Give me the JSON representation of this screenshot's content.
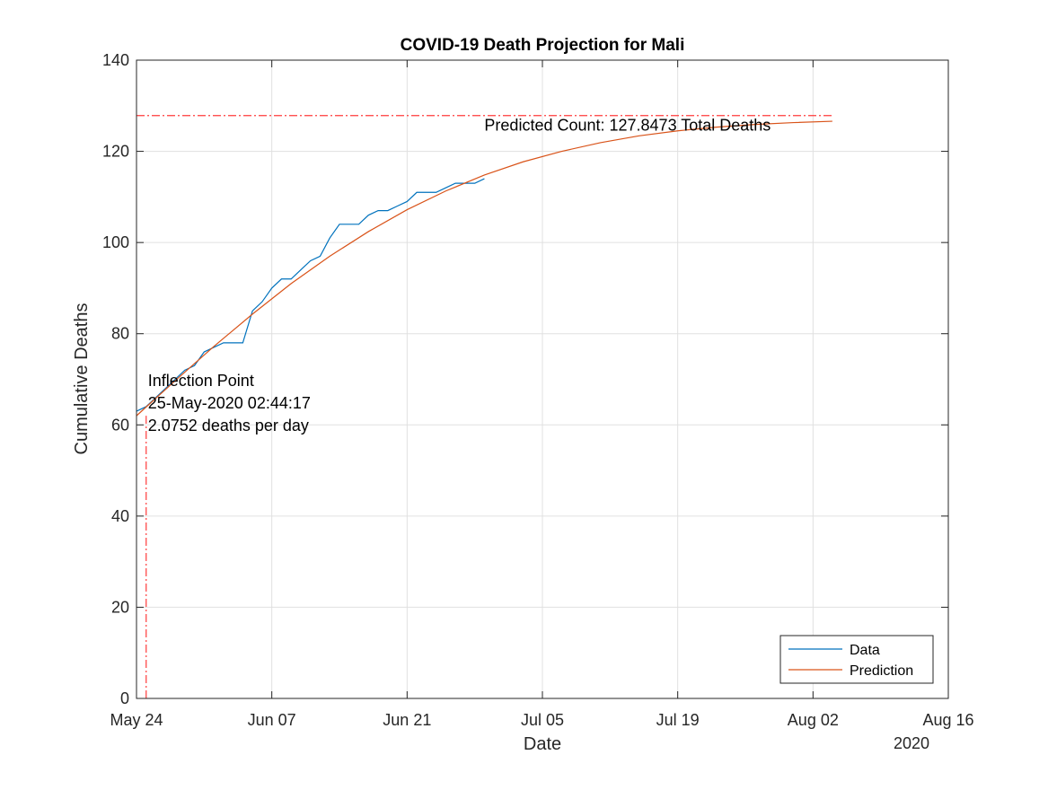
{
  "chart_data": {
    "type": "line",
    "title": "COVID-19 Death Projection for Mali",
    "xlabel": "Date",
    "ylabel": "Cumulative Deaths",
    "x_axis_type": "date",
    "xlim": [
      "2020-05-24",
      "2020-08-16"
    ],
    "ylim": [
      0,
      140
    ],
    "x_ticks": [
      {
        "date": "2020-05-24",
        "label": "May 24"
      },
      {
        "date": "2020-06-07",
        "label": "Jun 07"
      },
      {
        "date": "2020-06-21",
        "label": "Jun 21"
      },
      {
        "date": "2020-07-05",
        "label": "Jul 05"
      },
      {
        "date": "2020-07-19",
        "label": "Jul 19"
      },
      {
        "date": "2020-08-02",
        "label": "Aug 02"
      },
      {
        "date": "2020-08-16",
        "label": "Aug 16"
      }
    ],
    "x_year_label": "2020",
    "y_ticks": [
      0,
      20,
      40,
      60,
      80,
      100,
      120,
      140
    ],
    "grid": true,
    "legend_position": "bottom-right",
    "series": [
      {
        "name": "Data",
        "color": "#0072BD",
        "points": [
          [
            "2020-05-24",
            63
          ],
          [
            "2020-05-25",
            64
          ],
          [
            "2020-05-26",
            66
          ],
          [
            "2020-05-27",
            68
          ],
          [
            "2020-05-28",
            70
          ],
          [
            "2020-05-29",
            72
          ],
          [
            "2020-05-30",
            73
          ],
          [
            "2020-05-31",
            76
          ],
          [
            "2020-06-01",
            77
          ],
          [
            "2020-06-02",
            78
          ],
          [
            "2020-06-03",
            78
          ],
          [
            "2020-06-04",
            78
          ],
          [
            "2020-06-05",
            85
          ],
          [
            "2020-06-06",
            87
          ],
          [
            "2020-06-07",
            90
          ],
          [
            "2020-06-08",
            92
          ],
          [
            "2020-06-09",
            92
          ],
          [
            "2020-06-10",
            94
          ],
          [
            "2020-06-11",
            96
          ],
          [
            "2020-06-12",
            97
          ],
          [
            "2020-06-13",
            101
          ],
          [
            "2020-06-14",
            104
          ],
          [
            "2020-06-15",
            104
          ],
          [
            "2020-06-16",
            104
          ],
          [
            "2020-06-17",
            106
          ],
          [
            "2020-06-18",
            107
          ],
          [
            "2020-06-19",
            107
          ],
          [
            "2020-06-20",
            108
          ],
          [
            "2020-06-21",
            109
          ],
          [
            "2020-06-22",
            111
          ],
          [
            "2020-06-23",
            111
          ],
          [
            "2020-06-24",
            111
          ],
          [
            "2020-06-25",
            112
          ],
          [
            "2020-06-26",
            113
          ],
          [
            "2020-06-27",
            113
          ],
          [
            "2020-06-28",
            113
          ],
          [
            "2020-06-29",
            114
          ]
        ]
      },
      {
        "name": "Prediction",
        "color": "#D95319",
        "points": [
          [
            "2020-05-24",
            62.0
          ],
          [
            "2020-05-28",
            69.7
          ],
          [
            "2020-06-01",
            77.2
          ],
          [
            "2020-06-05",
            84.3
          ],
          [
            "2020-06-09",
            91.0
          ],
          [
            "2020-06-13",
            97.0
          ],
          [
            "2020-06-17",
            102.4
          ],
          [
            "2020-06-21",
            107.2
          ],
          [
            "2020-06-25",
            111.3
          ],
          [
            "2020-06-29",
            114.8
          ],
          [
            "2020-07-03",
            117.7
          ],
          [
            "2020-07-07",
            120.0
          ],
          [
            "2020-07-11",
            121.9
          ],
          [
            "2020-07-15",
            123.4
          ],
          [
            "2020-07-19",
            124.5
          ],
          [
            "2020-07-23",
            125.3
          ],
          [
            "2020-07-27",
            125.9
          ],
          [
            "2020-07-31",
            126.3
          ],
          [
            "2020-08-04",
            126.6
          ]
        ]
      }
    ],
    "reference_lines": [
      {
        "orientation": "horizontal",
        "value": 127.8473,
        "x_range": [
          "2020-05-24",
          "2020-08-04"
        ],
        "color": "#FF3B3B",
        "style": "dash-dot"
      },
      {
        "orientation": "vertical",
        "value": "2020-05-25",
        "y_range": [
          0,
          62
        ],
        "color": "#FF3B3B",
        "style": "dash-dot"
      }
    ],
    "annotations": [
      {
        "id": "predicted-count",
        "text": "Predicted Count: 127.8473 Total Deaths",
        "x": "2020-06-29",
        "y": 124.5
      },
      {
        "id": "inflection",
        "lines": [
          "Inflection Point",
          "25-May-2020 02:44:17",
          "2.0752 deaths per day"
        ],
        "x": "2020-05-25",
        "y": 68.5
      }
    ]
  }
}
